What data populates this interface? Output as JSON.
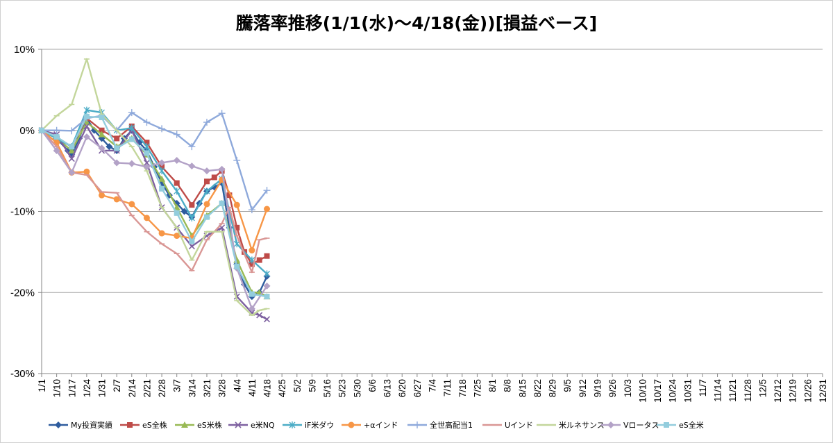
{
  "chart_data": {
    "type": "line",
    "title": "騰落率推移(1/1(水)～4/18(金))[損益ベース]",
    "xlabel": "",
    "ylabel": "",
    "ylim": [
      -0.3,
      0.1
    ],
    "yticks": [
      0.1,
      0.0,
      -0.1,
      -0.2,
      -0.3
    ],
    "ytick_labels": [
      "10%",
      "0%",
      "-10%",
      "-20%",
      "-30%"
    ],
    "grid": "horizontal major gridlines",
    "legend_position": "bottom",
    "categories": [
      "1/1",
      "1/10",
      "1/17",
      "1/24",
      "1/31",
      "2/7",
      "2/14",
      "2/21",
      "2/28",
      "3/7",
      "3/14",
      "3/21",
      "3/28",
      "4/4",
      "4/11",
      "4/18",
      "4/25",
      "5/2",
      "5/9",
      "5/16",
      "5/23",
      "5/30",
      "6/6",
      "6/13",
      "6/20",
      "6/27",
      "7/4",
      "7/11",
      "7/18",
      "7/25",
      "8/1",
      "8/8",
      "8/15",
      "8/22",
      "8/29",
      "9/5",
      "9/12",
      "9/19",
      "9/26",
      "10/3",
      "10/10",
      "10/17",
      "10/24",
      "10/31",
      "11/7",
      "11/14",
      "11/21",
      "11/28",
      "12/5",
      "12/12",
      "12/19",
      "12/26",
      "12/31"
    ],
    "x": [
      0,
      1,
      2,
      3,
      4,
      5,
      6,
      7,
      8,
      9,
      10,
      11,
      12,
      13,
      14,
      15,
      16,
      17,
      18,
      19,
      20,
      21,
      22,
      23,
      24,
      25,
      26,
      27,
      28,
      29,
      30,
      31,
      32,
      33,
      34,
      35,
      36,
      37,
      38,
      39,
      40,
      41,
      42,
      43,
      44,
      45,
      46,
      47,
      48,
      49,
      50,
      51,
      52
    ],
    "series": [
      {
        "name": "My投資実績",
        "color": "#2E5C9E",
        "marker": "diamond",
        "x": [
          0,
          1,
          1.75,
          2,
          2.5,
          3,
          3.5,
          4,
          4.5,
          5,
          5.5,
          6,
          6.5,
          7,
          7.5,
          8,
          8.5,
          9,
          9.5,
          10,
          10.5,
          11,
          11.5,
          12,
          12.5,
          13,
          13.5,
          14,
          14.5,
          15
        ],
        "y": [
          0,
          -0.01,
          -0.025,
          -0.03,
          -0.01,
          0.015,
          0.0,
          -0.01,
          -0.02,
          -0.025,
          -0.01,
          0.0,
          -0.015,
          -0.025,
          -0.045,
          -0.065,
          -0.08,
          -0.09,
          -0.1,
          -0.107,
          -0.09,
          -0.075,
          -0.07,
          -0.065,
          -0.12,
          -0.165,
          -0.19,
          -0.205,
          -0.2,
          -0.18
        ]
      },
      {
        "name": "eS全株",
        "color": "#BE4B48",
        "marker": "square",
        "x": [
          0,
          1,
          2,
          3,
          4,
          5,
          6,
          7,
          8,
          9,
          10,
          11,
          11.5,
          12,
          12.5,
          13,
          13.5,
          14,
          14.5,
          15
        ],
        "y": [
          0,
          -0.01,
          -0.02,
          0.015,
          0.0,
          -0.01,
          0.005,
          -0.015,
          -0.045,
          -0.065,
          -0.092,
          -0.063,
          -0.058,
          -0.05,
          -0.08,
          -0.12,
          -0.15,
          -0.165,
          -0.16,
          -0.155
        ]
      },
      {
        "name": "eS米株",
        "color": "#98B954",
        "marker": "triangle",
        "x": [
          0,
          1,
          2,
          3,
          4,
          5,
          6,
          7,
          8,
          9,
          10,
          11,
          12,
          13,
          14,
          14.5,
          15
        ],
        "y": [
          0,
          -0.01,
          -0.025,
          0.01,
          -0.005,
          -0.02,
          -0.01,
          -0.03,
          -0.06,
          -0.095,
          -0.13,
          -0.105,
          -0.09,
          -0.16,
          -0.2,
          -0.2,
          -0.205
        ]
      },
      {
        "name": "e米NQ",
        "color": "#7D60A0",
        "marker": "x",
        "x": [
          0,
          1,
          2,
          3,
          4,
          5,
          6,
          7,
          8,
          9,
          10,
          11,
          12,
          13,
          14,
          14.5,
          15
        ],
        "y": [
          0,
          -0.005,
          -0.035,
          0.005,
          -0.025,
          -0.025,
          0.0,
          -0.04,
          -0.095,
          -0.12,
          -0.143,
          -0.13,
          -0.12,
          -0.205,
          -0.225,
          -0.228,
          -0.233
        ]
      },
      {
        "name": "iF米ダウ",
        "color": "#4BACC6",
        "marker": "star",
        "x": [
          0,
          1,
          2,
          3,
          4,
          5,
          6,
          7,
          8,
          9,
          10,
          11,
          12,
          13,
          14,
          15
        ],
        "y": [
          0,
          -0.01,
          -0.02,
          0.025,
          0.022,
          0.0,
          0.003,
          -0.02,
          -0.05,
          -0.075,
          -0.108,
          -0.075,
          -0.06,
          -0.14,
          -0.16,
          -0.177
        ]
      },
      {
        "name": "+αインド",
        "color": "#F79646",
        "marker": "circle",
        "x": [
          0,
          1,
          2,
          3,
          4,
          5,
          6,
          7,
          8,
          9,
          10,
          11,
          12,
          13,
          14,
          15
        ],
        "y": [
          0,
          -0.015,
          -0.052,
          -0.051,
          -0.08,
          -0.085,
          -0.091,
          -0.108,
          -0.127,
          -0.13,
          -0.133,
          -0.091,
          -0.061,
          -0.092,
          -0.148,
          -0.097
        ]
      },
      {
        "name": "全世高配当1",
        "color": "#8EA9DB",
        "marker": "plus",
        "x": [
          0,
          1,
          2,
          3,
          4,
          5,
          6,
          7,
          8,
          9,
          10,
          11,
          12,
          13,
          14,
          15
        ],
        "y": [
          0,
          0.0,
          -0.0005,
          0.015,
          0.018,
          0.0,
          0.022,
          0.01,
          0.002,
          -0.005,
          -0.02,
          0.01,
          0.021,
          -0.037,
          -0.098,
          -0.074
        ]
      },
      {
        "name": "Uインド",
        "color": "#D99694",
        "marker": "dash",
        "x": [
          0,
          1,
          2,
          3,
          4,
          5,
          6,
          7,
          8,
          9,
          10,
          11,
          12,
          12.5,
          13,
          14,
          14.5,
          15
        ],
        "y": [
          0,
          -0.02,
          -0.052,
          -0.055,
          -0.076,
          -0.077,
          -0.105,
          -0.125,
          -0.14,
          -0.152,
          -0.173,
          -0.135,
          -0.115,
          -0.095,
          -0.13,
          -0.175,
          -0.135,
          -0.133
        ]
      },
      {
        "name": "米ルネサンス",
        "color": "#C3D69B",
        "marker": "dash",
        "x": [
          0,
          1,
          2,
          3,
          4,
          5,
          6,
          7,
          8,
          9,
          10,
          11,
          12,
          13,
          14,
          14.5,
          15
        ],
        "y": [
          0,
          0.018,
          0.032,
          0.088,
          0.02,
          0.0,
          -0.02,
          -0.05,
          -0.095,
          -0.12,
          -0.16,
          -0.125,
          -0.125,
          -0.21,
          -0.228,
          -0.222,
          -0.22
        ]
      },
      {
        "name": "Vロータス",
        "color": "#B3A2C7",
        "marker": "diamond",
        "x": [
          0,
          1,
          2,
          3,
          4,
          5,
          6,
          7,
          8,
          9,
          10,
          11,
          12,
          13,
          14,
          15
        ],
        "y": [
          0,
          -0.025,
          -0.052,
          -0.008,
          -0.022,
          -0.04,
          -0.041,
          -0.045,
          -0.04,
          -0.037,
          -0.044,
          -0.05,
          -0.048,
          -0.17,
          -0.22,
          -0.192
        ]
      },
      {
        "name": "eS全米",
        "color": "#93CDDD",
        "marker": "square",
        "x": [
          0,
          1,
          2,
          3,
          4,
          5,
          6,
          7,
          8,
          9,
          10,
          11,
          12,
          13,
          14,
          15
        ],
        "y": [
          0,
          -0.008,
          -0.02,
          0.017,
          0.016,
          -0.022,
          -0.011,
          -0.028,
          -0.072,
          -0.102,
          -0.137,
          -0.107,
          -0.09,
          -0.168,
          -0.202,
          -0.205
        ]
      }
    ]
  }
}
